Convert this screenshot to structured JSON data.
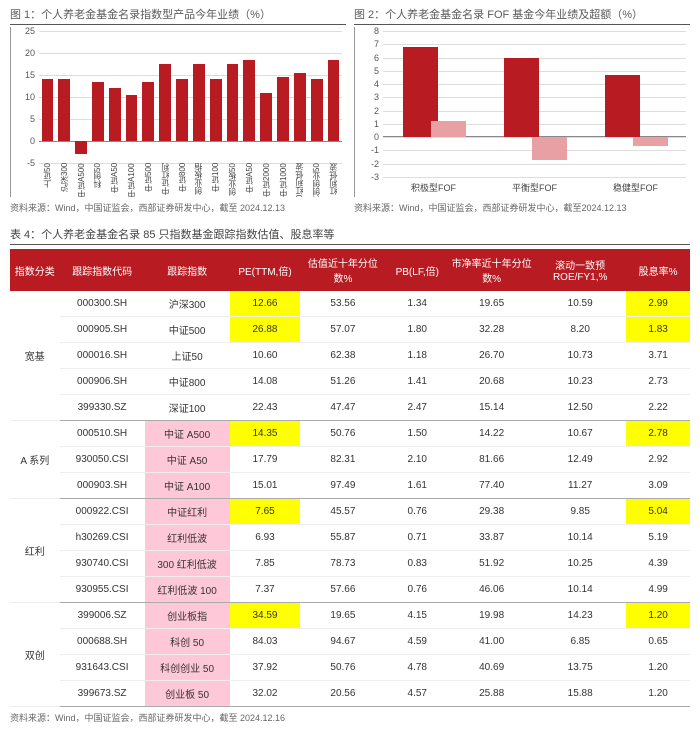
{
  "chart1": {
    "title": "图 1：个人养老金基金名录指数型产品今年业绩（%）",
    "type": "bar",
    "ylim": [
      -5,
      25
    ],
    "ytick_step": 5,
    "bar_color": "#b81c22",
    "grid_color": "#dddddd",
    "categories": [
      "上证50",
      "沪深300",
      "中证A500",
      "科创50",
      "中证A50",
      "中证A100",
      "中证500",
      "中证红利",
      "中证800",
      "创业板指",
      "中证100",
      "创业板50",
      "中证A50",
      "中证2000",
      "中证1000",
      "300红利低波",
      "科创创业50",
      "红利低波"
    ],
    "values": [
      14.0,
      14.2,
      -3.0,
      13.5,
      12.0,
      10.5,
      13.5,
      17.5,
      14.0,
      17.5,
      14.0,
      17.5,
      18.5,
      11.0,
      14.5,
      15.5,
      14.0,
      18.5
    ],
    "source": "资料来源：Wind，中国证监会，西部证券研发中心，截至 2024.12.13"
  },
  "chart2": {
    "title": "图 2：个人养老金基金名录 FOF 基金今年业绩及超额（%）",
    "type": "grouped-bar",
    "ylim": [
      -3,
      8
    ],
    "yticks": [
      -3,
      -2,
      -1,
      0,
      1,
      2,
      3,
      4,
      5,
      6,
      7,
      8
    ],
    "bar1_color": "#b81c22",
    "bar2_color": "#e8a0a4",
    "grid_color": "#dddddd",
    "categories": [
      "积极型FOF",
      "平衡型FOF",
      "稳健型FOF"
    ],
    "series1": [
      6.8,
      6.0,
      4.7
    ],
    "series2": [
      1.2,
      -1.7,
      -0.7
    ],
    "source": "资料来源：Wind，中国证监会，西部证券研发中心，截至2024.12.13"
  },
  "table": {
    "title": "表 4：个人养老金基金名录 85 只指数基金跟踪指数估值、股息率等",
    "columns": [
      "指数分类",
      "跟踪指数代码",
      "跟踪指数",
      "PE(TTM,倍)",
      "估值近十年分位数%",
      "PB(LF,倍)",
      "市净率近十年分位数%",
      "滚动一致预ROE/FY1,%",
      "股息率%"
    ],
    "col_widths": [
      "7%",
      "12%",
      "12%",
      "10%",
      "12%",
      "9%",
      "12%",
      "13%",
      "9%"
    ],
    "groups": [
      {
        "name": "宽基",
        "span": 5,
        "rows": [
          {
            "code": "000300.SH",
            "idx": "沪深300",
            "pe": "12.66",
            "pe_hl": "y",
            "pep": "53.56",
            "pb": "1.34",
            "pbp": "19.65",
            "roe": "10.59",
            "div": "2.99",
            "div_hl": "y"
          },
          {
            "code": "000905.SH",
            "idx": "中证500",
            "pe": "26.88",
            "pe_hl": "y",
            "pep": "57.07",
            "pb": "1.80",
            "pbp": "32.28",
            "roe": "8.20",
            "div": "1.83",
            "div_hl": "y"
          },
          {
            "code": "000016.SH",
            "idx": "上证50",
            "pe": "10.60",
            "pep": "62.38",
            "pb": "1.18",
            "pbp": "26.70",
            "roe": "10.73",
            "div": "3.71"
          },
          {
            "code": "000906.SH",
            "idx": "中证800",
            "pe": "14.08",
            "pep": "51.26",
            "pb": "1.41",
            "pbp": "20.68",
            "roe": "10.23",
            "div": "2.73"
          },
          {
            "code": "399330.SZ",
            "idx": "深证100",
            "pe": "22.43",
            "pep": "47.47",
            "pb": "2.47",
            "pbp": "15.14",
            "roe": "12.50",
            "div": "2.22"
          }
        ]
      },
      {
        "name": "A 系列",
        "span": 3,
        "rows": [
          {
            "code": "000510.SH",
            "idx": "中证 A500",
            "idx_hl": "p",
            "pe": "14.35",
            "pe_hl": "y",
            "pep": "50.76",
            "pb": "1.50",
            "pbp": "14.22",
            "roe": "10.67",
            "div": "2.78",
            "div_hl": "y"
          },
          {
            "code": "930050.CSI",
            "idx": "中证 A50",
            "idx_hl": "p",
            "pe": "17.79",
            "pep": "82.31",
            "pb": "2.10",
            "pbp": "81.66",
            "roe": "12.49",
            "div": "2.92"
          },
          {
            "code": "000903.SH",
            "idx": "中证 A100",
            "idx_hl": "p",
            "pe": "15.01",
            "pep": "97.49",
            "pb": "1.61",
            "pbp": "77.40",
            "roe": "11.27",
            "div": "3.09"
          }
        ]
      },
      {
        "name": "红利",
        "span": 4,
        "rows": [
          {
            "code": "000922.CSI",
            "idx": "中证红利",
            "idx_hl": "p",
            "pe": "7.65",
            "pe_hl": "y",
            "pep": "45.57",
            "pb": "0.76",
            "pbp": "29.38",
            "roe": "9.85",
            "div": "5.04",
            "div_hl": "y"
          },
          {
            "code": "h30269.CSI",
            "idx": "红利低波",
            "idx_hl": "p",
            "pe": "6.93",
            "pep": "55.87",
            "pb": "0.71",
            "pbp": "33.87",
            "roe": "10.14",
            "div": "5.19"
          },
          {
            "code": "930740.CSI",
            "idx": "300 红利低波",
            "idx_hl": "p",
            "pe": "7.85",
            "pep": "78.73",
            "pb": "0.83",
            "pbp": "51.92",
            "roe": "10.25",
            "div": "4.39"
          },
          {
            "code": "930955.CSI",
            "idx": "红利低波 100",
            "idx_hl": "p",
            "pe": "7.37",
            "pep": "57.66",
            "pb": "0.76",
            "pbp": "46.06",
            "roe": "10.14",
            "div": "4.99"
          }
        ]
      },
      {
        "name": "双创",
        "span": 4,
        "rows": [
          {
            "code": "399006.SZ",
            "idx": "创业板指",
            "idx_hl": "p",
            "pe": "34.59",
            "pe_hl": "y",
            "pep": "19.65",
            "pb": "4.15",
            "pbp": "19.98",
            "roe": "14.23",
            "div": "1.20",
            "div_hl": "y"
          },
          {
            "code": "000688.SH",
            "idx": "科创 50",
            "idx_hl": "p",
            "pe": "84.03",
            "pep": "94.67",
            "pb": "4.59",
            "pbp": "41.00",
            "roe": "6.85",
            "div": "0.65"
          },
          {
            "code": "931643.CSI",
            "idx": "科创创业 50",
            "idx_hl": "p",
            "pe": "37.92",
            "pep": "50.76",
            "pb": "4.78",
            "pbp": "40.69",
            "roe": "13.75",
            "div": "1.20"
          },
          {
            "code": "399673.SZ",
            "idx": "创业板 50",
            "idx_hl": "p",
            "pe": "32.02",
            "pep": "20.56",
            "pb": "4.57",
            "pbp": "25.88",
            "roe": "15.88",
            "div": "1.20"
          }
        ]
      }
    ],
    "source": "资料来源：Wind，中国证监会，西部证券研发中心，截至 2024.12.16"
  }
}
